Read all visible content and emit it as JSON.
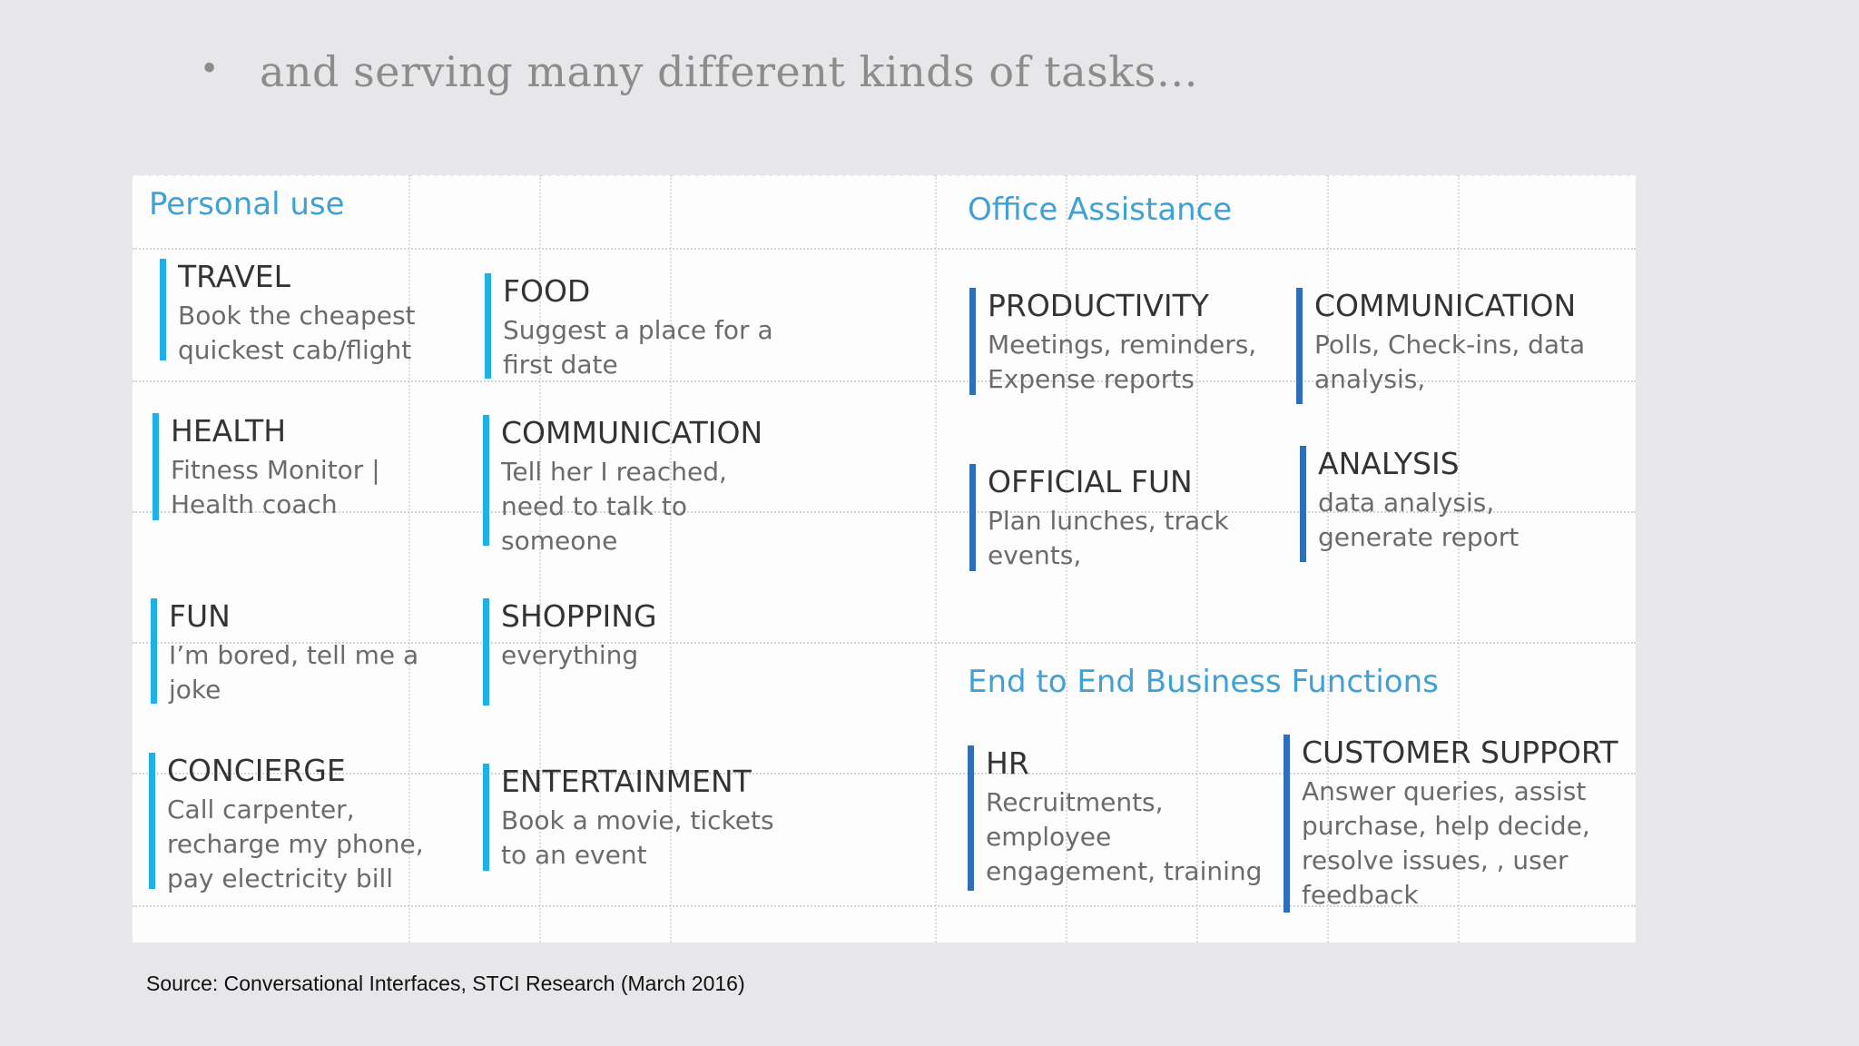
{
  "slide": {
    "bullet_symbol": "•",
    "bullet_text": "and serving many different kinds of tasks…",
    "source": "Source: Conversational Interfaces, STCI Research (March 2016)"
  },
  "personal": {
    "title": "Personal use",
    "tiles": [
      {
        "heading": "TRAVEL",
        "desc": "Book the cheapest quickest cab/flight"
      },
      {
        "heading": "FOOD",
        "desc": "Suggest a place for a first date"
      },
      {
        "heading": "HEALTH",
        "desc": "Fitness Monitor | Health coach"
      },
      {
        "heading": "COMMUNICATION",
        "desc": "Tell her I reached, need to talk to someone"
      },
      {
        "heading": "FUN",
        "desc": "I’m bored, tell me a joke"
      },
      {
        "heading": "SHOPPING",
        "desc": "everything"
      },
      {
        "heading": "CONCIERGE",
        "desc": "Call carpenter, recharge my phone, pay electricity  bill"
      },
      {
        "heading": "ENTERTAINMENT",
        "desc": "Book a movie, tickets to an event"
      }
    ]
  },
  "office": {
    "title": "Office Assistance",
    "tiles": [
      {
        "heading": "PRODUCTIVITY",
        "desc": "Meetings, reminders, Expense reports"
      },
      {
        "heading": "COMMUNICATION",
        "desc": "Polls, Check-ins, data analysis,"
      },
      {
        "heading": "OFFICIAL FUN",
        "desc": "Plan lunches, track events,"
      },
      {
        "heading": "ANALYSIS",
        "desc": "data analysis, generate report"
      }
    ]
  },
  "business": {
    "title": "End to End Business Functions",
    "tiles": [
      {
        "heading": "HR",
        "desc": "Recruitments, employee engagement, training"
      },
      {
        "heading": "CUSTOMER SUPPORT",
        "desc": "Answer queries, assist purchase, help decide, resolve issues, , user feedback"
      }
    ]
  },
  "colors": {
    "personal_bar": "#1fb0e6",
    "office_bar": "#2f6fba",
    "section_title": "#3fa1d4"
  }
}
